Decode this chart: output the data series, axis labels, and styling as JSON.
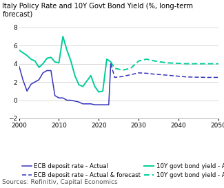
{
  "title": "Italy Policy Rate and 10Y Govt Bond Yield (%, long-term forecast)",
  "source": "Sources: Refinitiv, Capital Economics",
  "xlim": [
    2000,
    2050
  ],
  "ylim": [
    -2,
    8
  ],
  "yticks": [
    -2,
    0,
    2,
    4,
    6,
    8
  ],
  "xticks": [
    2000,
    2010,
    2020,
    2030,
    2040,
    2050
  ],
  "ecb_actual_x": [
    2000,
    2001,
    2002,
    2003,
    2004,
    2005,
    2006,
    2007,
    2008,
    2009,
    2010,
    2011,
    2012,
    2013,
    2014,
    2015,
    2016,
    2017,
    2018,
    2019,
    2020,
    2021,
    2022,
    2022.5,
    2023
  ],
  "ecb_actual_y": [
    3.75,
    2.2,
    1.0,
    1.75,
    2.0,
    2.25,
    3.0,
    3.25,
    3.25,
    0.5,
    0.25,
    0.25,
    0.0,
    0.0,
    -0.1,
    -0.2,
    -0.4,
    -0.4,
    -0.4,
    -0.5,
    -0.5,
    -0.5,
    -0.5,
    -0.5,
    4.0
  ],
  "ecb_forecast_x": [
    2023,
    2024,
    2026,
    2028,
    2030,
    2032,
    2034,
    2037,
    2042,
    2047,
    2050
  ],
  "ecb_forecast_y": [
    4.0,
    2.5,
    2.6,
    2.8,
    3.0,
    2.95,
    2.85,
    2.75,
    2.55,
    2.5,
    2.5
  ],
  "bond_actual_x": [
    2000,
    2001,
    2002,
    2003,
    2004,
    2005,
    2006,
    2007,
    2008,
    2009,
    2010,
    2011,
    2012,
    2013,
    2014,
    2015,
    2016,
    2017,
    2018,
    2019,
    2020,
    2021,
    2022,
    2023
  ],
  "bond_actual_y": [
    5.5,
    5.2,
    4.9,
    4.5,
    4.3,
    3.6,
    4.0,
    4.6,
    4.7,
    4.2,
    4.1,
    7.0,
    5.5,
    4.3,
    2.7,
    1.7,
    1.5,
    2.1,
    2.7,
    1.5,
    0.9,
    1.0,
    4.5,
    4.2
  ],
  "bond_forecast_x": [
    2023,
    2024,
    2026,
    2028,
    2030,
    2032,
    2034,
    2037,
    2042,
    2047,
    2050
  ],
  "bond_forecast_y": [
    4.2,
    3.5,
    3.3,
    3.5,
    4.3,
    4.5,
    4.3,
    4.1,
    4.0,
    4.0,
    4.0
  ],
  "ecb_color": "#3333bb",
  "bond_color": "#00cc99",
  "title_fontsize": 7.2,
  "source_fontsize": 6.5,
  "tick_fontsize": 6.5,
  "legend_fontsize": 6.2
}
